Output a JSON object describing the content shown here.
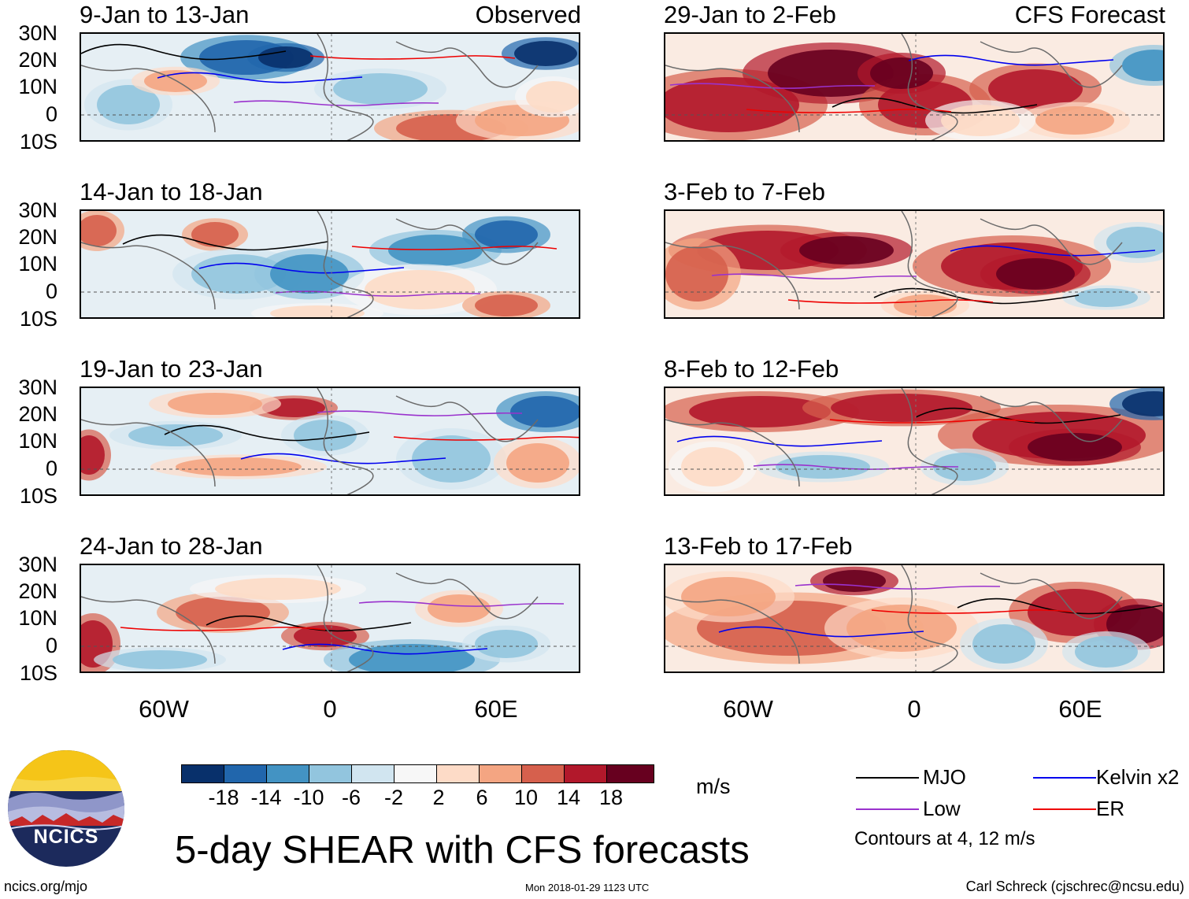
{
  "panels_left": [
    {
      "title": "9-Jan to 13-Jan",
      "tag": "Observed"
    },
    {
      "title": "14-Jan to 18-Jan",
      "tag": ""
    },
    {
      "title": "19-Jan to 23-Jan",
      "tag": ""
    },
    {
      "title": "24-Jan to 28-Jan",
      "tag": ""
    }
  ],
  "panels_right": [
    {
      "title": "29-Jan to 2-Feb",
      "tag": "CFS Forecast"
    },
    {
      "title": "3-Feb to 7-Feb",
      "tag": ""
    },
    {
      "title": "8-Feb to 12-Feb",
      "tag": ""
    },
    {
      "title": "13-Feb to 17-Feb",
      "tag": ""
    }
  ],
  "lat_labels": [
    "30N",
    "20N",
    "10N",
    "0",
    "10S"
  ],
  "lon_labels": [
    "60W",
    "0",
    "60E"
  ],
  "colorbar": {
    "colors": [
      "#08306b",
      "#2166ac",
      "#4393c3",
      "#92c5de",
      "#d1e5f0",
      "#f7f7f7",
      "#fddbc7",
      "#f4a582",
      "#d6604d",
      "#b2182b",
      "#67001f"
    ],
    "ticks": [
      "-18",
      "-14",
      "-10",
      "-6",
      "-2",
      "2",
      "6",
      "10",
      "14",
      "18"
    ],
    "units": "m/s"
  },
  "title": "5-day SHEAR with CFS forecasts",
  "legend": {
    "items": [
      {
        "label": "MJO",
        "color": "#000000"
      },
      {
        "label": "Kelvin x2",
        "color": "#0000ee"
      },
      {
        "label": "Low",
        "color": "#9a32cd"
      },
      {
        "label": "ER",
        "color": "#ee0000"
      }
    ],
    "note": "Contours at 4, 12 m/s"
  },
  "logo_text": "NCICS",
  "footer": {
    "left": "ncics.org/mjo",
    "middle": "Mon 2018-01-29 1123 UTC",
    "right": "Carl Schreck (cjschrec@ncsu.edu)"
  }
}
